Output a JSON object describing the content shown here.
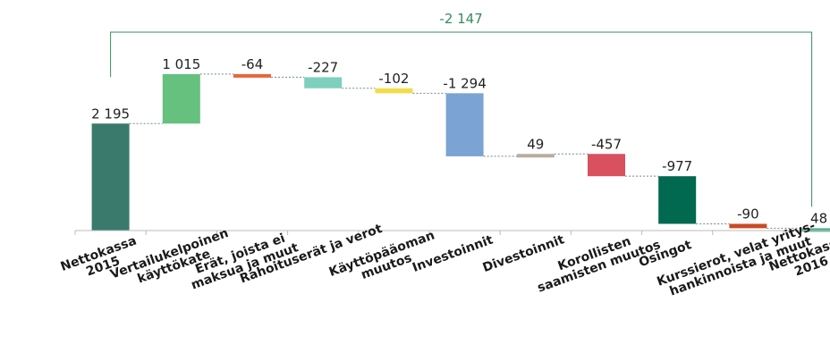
{
  "chart_data": {
    "type": "waterfall",
    "bracket_label": "-2 147",
    "bracket_color": "#3a8a5c",
    "categories": [
      [
        "Nettokassa",
        "2015"
      ],
      [
        "Vertailukelpoinen",
        "käyttökate"
      ],
      [
        "Erät, joista ei",
        "maksua ja muut"
      ],
      [
        "Rahoituserät ja verot"
      ],
      [
        "Käyttöpääoman",
        "muutos"
      ],
      [
        "Investoinnit"
      ],
      [
        "Divestoinnit"
      ],
      [
        "Korollisten",
        "saamisten muutos"
      ],
      [
        "Osingot"
      ],
      [
        "Kurssierot, velat yritys-",
        "hankinnoista ja muut"
      ],
      [
        "Nettokassa",
        "2016"
      ]
    ],
    "values": [
      2195,
      1015,
      -64,
      -227,
      -102,
      -1294,
      49,
      -457,
      -977,
      -90,
      48
    ],
    "labels": [
      "2 195",
      "1 015",
      "-64",
      "-227",
      "-102",
      "-1 294",
      "49",
      "-457",
      "-977",
      "-90",
      "48"
    ],
    "kinds": [
      "total",
      "delta",
      "delta",
      "delta",
      "delta",
      "delta",
      "delta",
      "delta",
      "delta",
      "delta",
      "total"
    ],
    "colors": [
      "#3a7a6c",
      "#66c07e",
      "#e8663a",
      "#7fcfbf",
      "#f2dd4a",
      "#7ba3d4",
      "#b8aca0",
      "#d9505e",
      "#00694f",
      "#c84a22",
      "#4caf8a"
    ],
    "ylim": [
      0,
      3300
    ]
  }
}
